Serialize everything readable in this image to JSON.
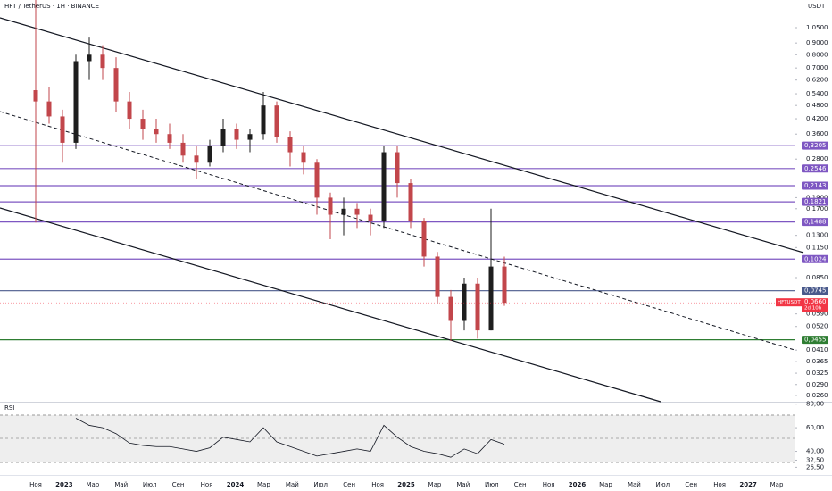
{
  "chart_data": {
    "type": "candlestick",
    "title": "HFT / TetherUS · 1H · BINANCE",
    "currency": "USDT",
    "log_scale": true,
    "ylim": [
      0.0244,
      1.387
    ],
    "yticks": [
      {
        "value": 1.05,
        "label": "1,0500"
      },
      {
        "value": 0.9,
        "label": "0,9000"
      },
      {
        "value": 0.8,
        "label": "0,8000"
      },
      {
        "value": 0.7,
        "label": "0,7000"
      },
      {
        "value": 0.62,
        "label": "0,6200"
      },
      {
        "value": 0.54,
        "label": "0,5400"
      },
      {
        "value": 0.48,
        "label": "0,4800"
      },
      {
        "value": 0.42,
        "label": "0,4200"
      },
      {
        "value": 0.36,
        "label": "0,3600"
      },
      {
        "value": 0.28,
        "label": "0,2800"
      },
      {
        "value": 0.19,
        "label": "0,1900"
      },
      {
        "value": 0.17,
        "label": "0,1700"
      },
      {
        "value": 0.13,
        "label": "0,1300"
      },
      {
        "value": 0.115,
        "label": "0,1150"
      },
      {
        "value": 0.085,
        "label": "0,0850"
      },
      {
        "value": 0.059,
        "label": "0,0590"
      },
      {
        "value": 0.052,
        "label": "0,0520"
      },
      {
        "value": 0.041,
        "label": "0,0410"
      },
      {
        "value": 0.0365,
        "label": "0,0365"
      },
      {
        "value": 0.0325,
        "label": "0,0325"
      },
      {
        "value": 0.029,
        "label": "0,0290"
      },
      {
        "value": 0.026,
        "label": "0,0260"
      }
    ],
    "levels": [
      {
        "value": 0.3205,
        "label": "0,3205",
        "color": "#7e57c2"
      },
      {
        "value": 0.2546,
        "label": "0,2546",
        "color": "#7e57c2"
      },
      {
        "value": 0.2143,
        "label": "0,2143",
        "color": "#7e57c2"
      },
      {
        "value": 0.1821,
        "label": "0,1821",
        "color": "#7e57c2"
      },
      {
        "value": 0.1488,
        "label": "0,1488",
        "color": "#7e57c2"
      },
      {
        "value": 0.1024,
        "label": "0,1024",
        "color": "#7e57c2"
      },
      {
        "value": 0.0745,
        "label": "0,0745",
        "color": "#4a5a8c"
      },
      {
        "value": 0.0455,
        "label": "0,0455",
        "color": "#2e7d32"
      }
    ],
    "last_price": {
      "symbol": "HFTUSDT",
      "value": 0.066,
      "label": "0,0660",
      "countdown": "2d 10h",
      "color": "#f23645"
    },
    "up_color": "#1e1e1e",
    "down_color": "#c2464b",
    "open": [
      0.56,
      0.5,
      0.43,
      0.33,
      0.75,
      0.8,
      0.7,
      0.5,
      0.42,
      0.38,
      0.36,
      0.33,
      0.29,
      0.27,
      0.32,
      0.38,
      0.34,
      0.36,
      0.48,
      0.35,
      0.3,
      0.27,
      0.19,
      0.16,
      0.17,
      0.16,
      0.15,
      0.3,
      0.22,
      0.15,
      0.105,
      0.07,
      0.055,
      0.08,
      0.05,
      0.095
    ],
    "high": [
      1.387,
      0.58,
      0.46,
      0.8,
      0.95,
      0.88,
      0.78,
      0.55,
      0.46,
      0.42,
      0.4,
      0.36,
      0.32,
      0.34,
      0.42,
      0.4,
      0.38,
      0.55,
      0.5,
      0.37,
      0.32,
      0.28,
      0.2,
      0.19,
      0.18,
      0.17,
      0.32,
      0.32,
      0.23,
      0.155,
      0.11,
      0.075,
      0.085,
      0.085,
      0.17,
      0.105
    ],
    "low": [
      0.148,
      0.4,
      0.27,
      0.31,
      0.62,
      0.62,
      0.45,
      0.38,
      0.34,
      0.33,
      0.31,
      0.27,
      0.23,
      0.26,
      0.3,
      0.31,
      0.3,
      0.34,
      0.33,
      0.26,
      0.24,
      0.16,
      0.125,
      0.13,
      0.14,
      0.13,
      0.14,
      0.19,
      0.14,
      0.095,
      0.065,
      0.045,
      0.05,
      0.046,
      0.05,
      0.064
    ],
    "close": [
      0.5,
      0.43,
      0.33,
      0.75,
      0.8,
      0.7,
      0.5,
      0.42,
      0.38,
      0.36,
      0.33,
      0.29,
      0.27,
      0.32,
      0.38,
      0.34,
      0.36,
      0.48,
      0.35,
      0.3,
      0.27,
      0.19,
      0.16,
      0.17,
      0.16,
      0.15,
      0.3,
      0.22,
      0.15,
      0.105,
      0.07,
      0.055,
      0.08,
      0.05,
      0.095,
      0.066
    ],
    "xticks": [
      "Ноя",
      "2023",
      "Мар",
      "Май",
      "Июл",
      "Сен",
      "Ноя",
      "2024",
      "Мар",
      "Май",
      "Июл",
      "Сен",
      "Ноя",
      "2025",
      "Мар",
      "Май",
      "Июл",
      "Сен",
      "Ноя",
      "2026",
      "Мар",
      "Май",
      "Июл",
      "Сен",
      "Ноя",
      "2027",
      "Мар"
    ],
    "rsi": {
      "name": "RSI",
      "color": "#131722",
      "ylim": [
        20,
        82
      ],
      "yticks": [
        {
          "value": 80,
          "label": "80,00"
        },
        {
          "value": 60,
          "label": "60,00"
        },
        {
          "value": 40,
          "label": "40,00"
        },
        {
          "value": 32.5,
          "label": "32,50"
        },
        {
          "value": 26.5,
          "label": "26,50"
        }
      ],
      "values": [
        null,
        null,
        null,
        68,
        62,
        60,
        55,
        47,
        45,
        44,
        44,
        42,
        40,
        43,
        52,
        50,
        48,
        60,
        48,
        44,
        40,
        36,
        38,
        40,
        42,
        40,
        62,
        52,
        44,
        40,
        38,
        35,
        42,
        38,
        50,
        46
      ]
    }
  }
}
